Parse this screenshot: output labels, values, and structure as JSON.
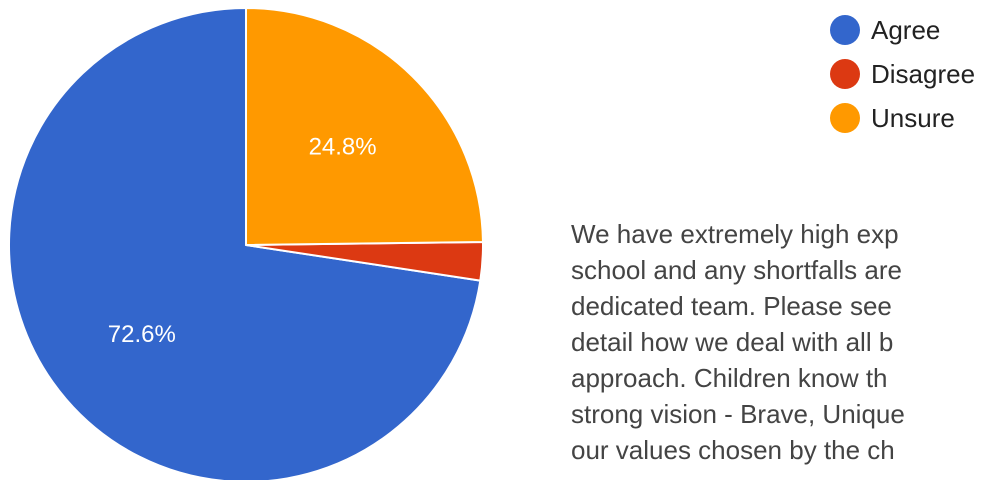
{
  "chart_data": {
    "type": "pie",
    "categories": [
      "Agree",
      "Disagree",
      "Unsure"
    ],
    "values": [
      72.6,
      2.6,
      24.8
    ],
    "data_labels": [
      "72.6%",
      "",
      "24.8%"
    ],
    "colors": [
      "#3366cc",
      "#dc3912",
      "#ff9900"
    ],
    "title": "",
    "legend_position": "top-right"
  },
  "note": {
    "text": "We have extremely high exp\nschool and any shortfalls are\ndedicated team.  Please see\ndetail how we deal with all b\napproach.  Children know th\nstrong vision - Brave, Unique\nour values chosen by the ch"
  }
}
